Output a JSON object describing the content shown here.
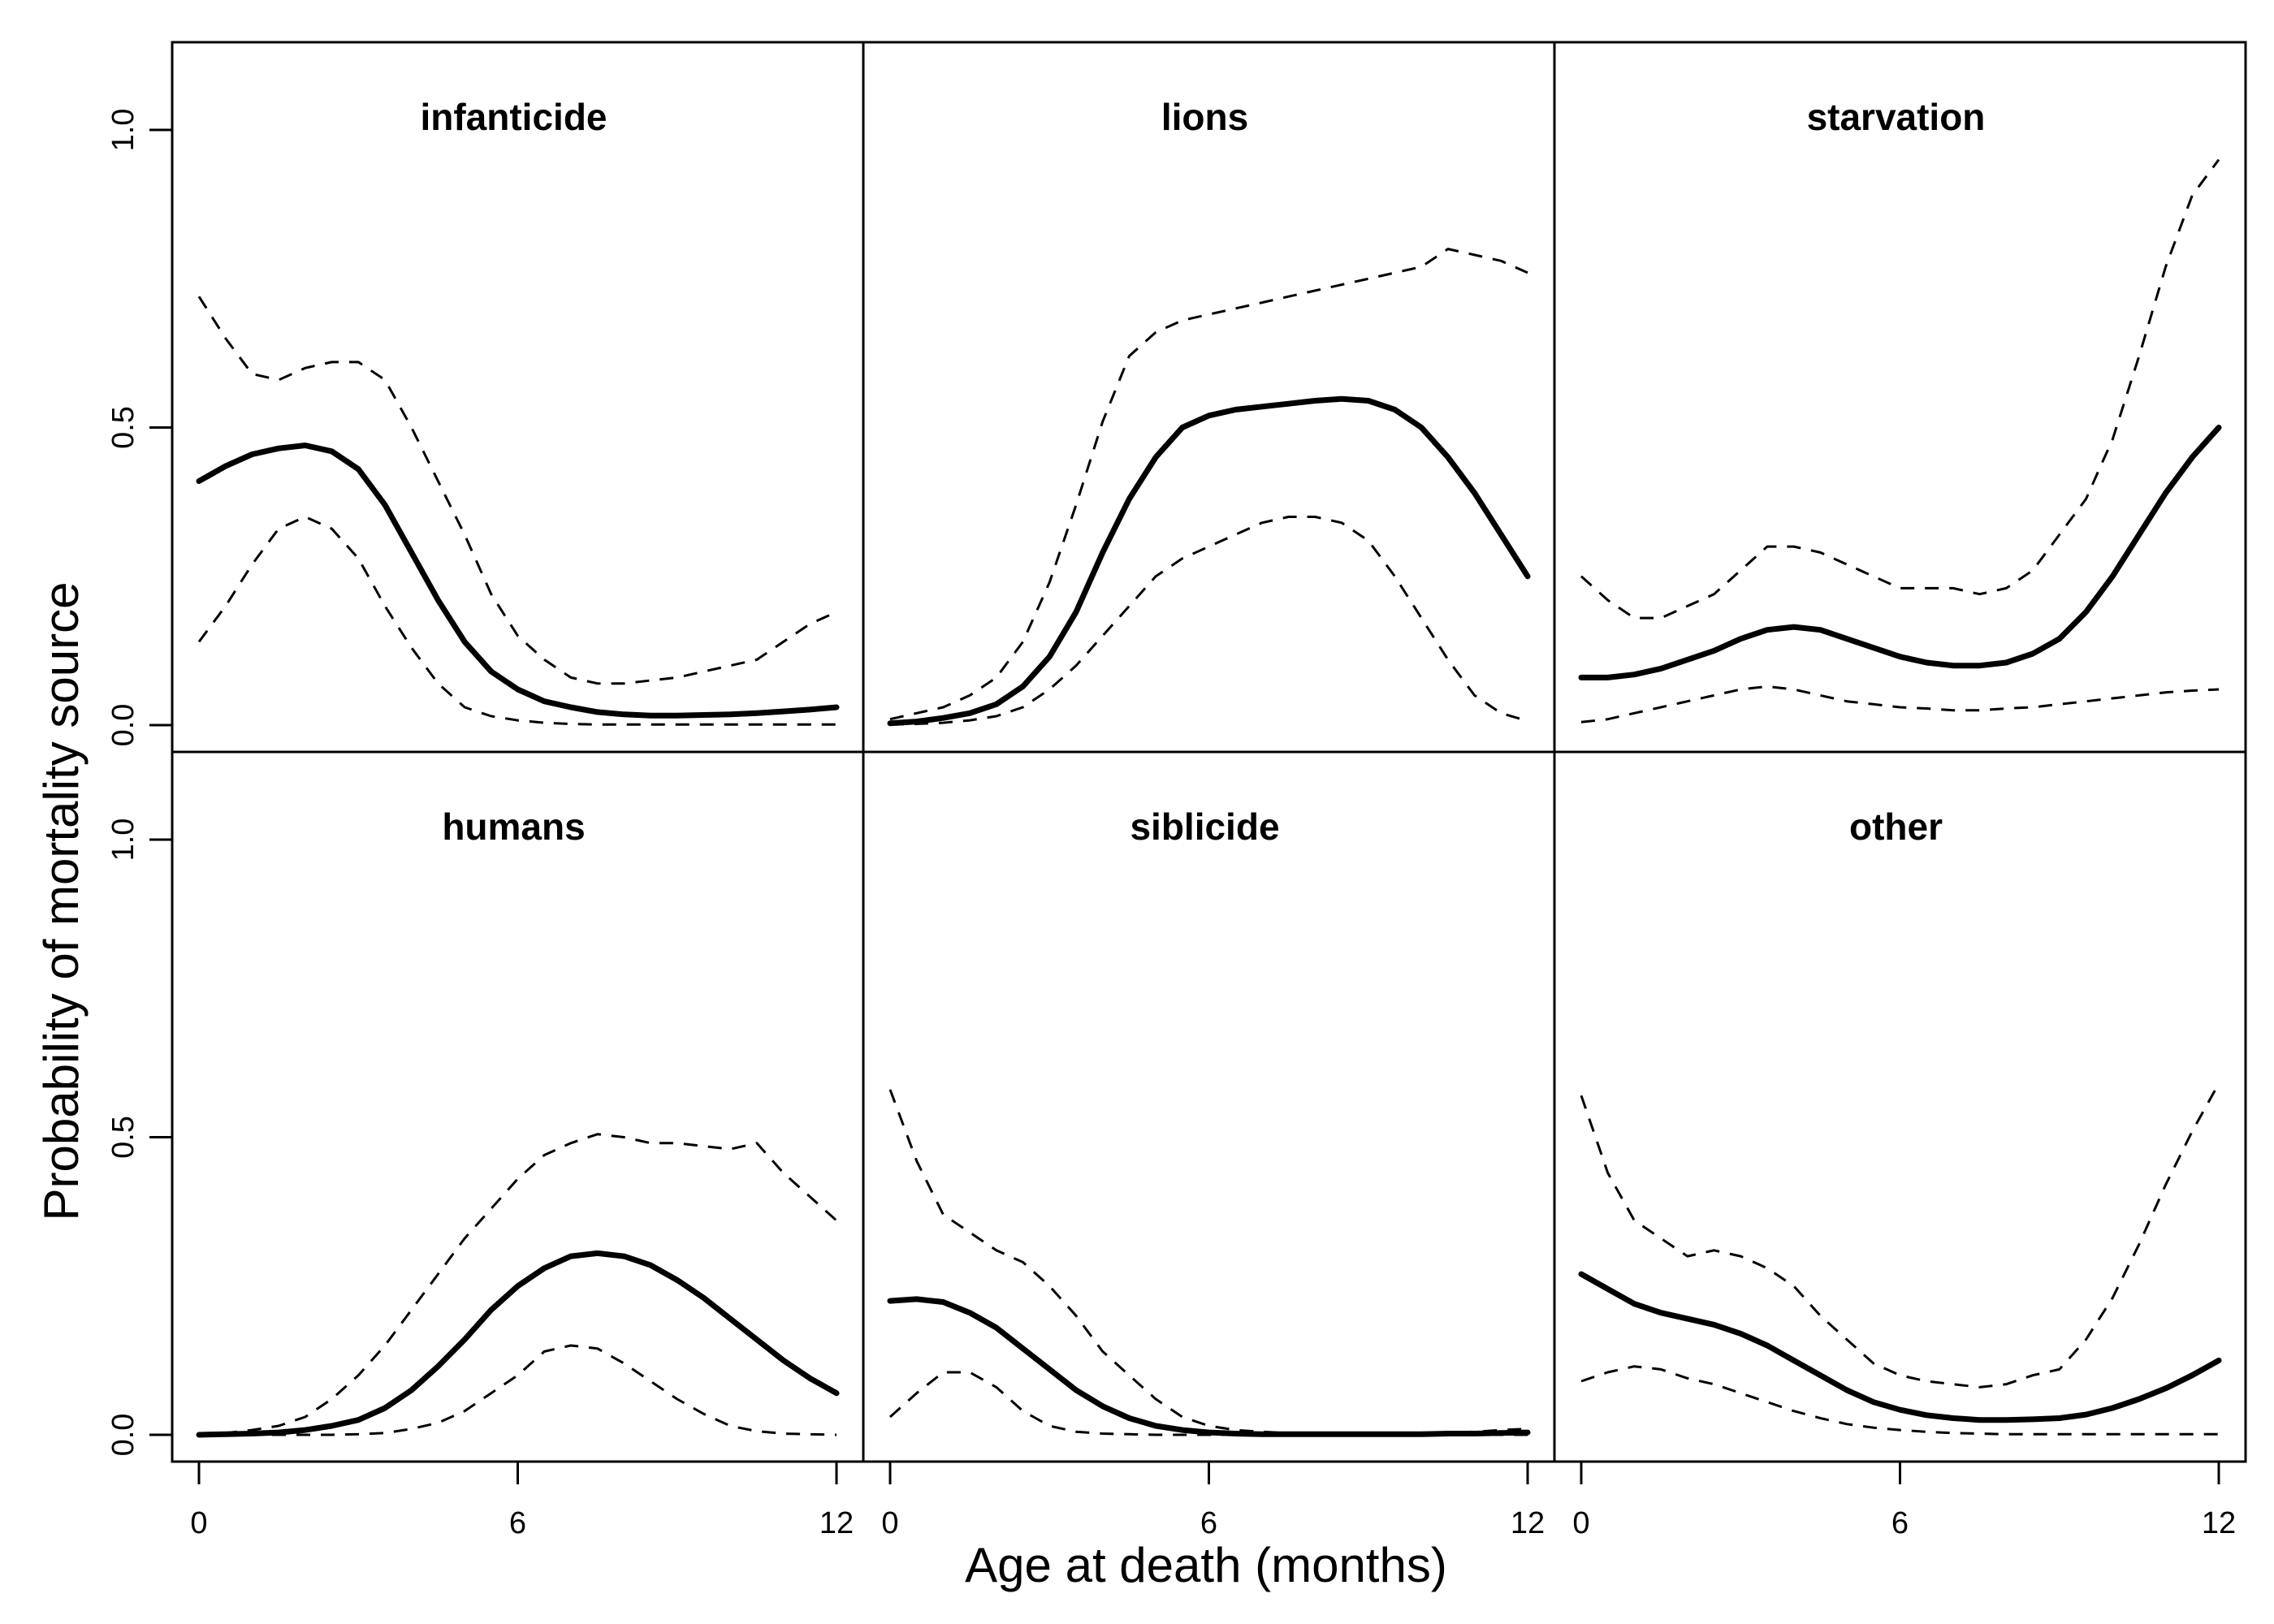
{
  "chart_data": {
    "type": "line",
    "xlabel": "Age at death (months)",
    "ylabel": "Probability of mortality source",
    "xlim": [
      0,
      12
    ],
    "ylim": [
      0,
      1
    ],
    "x_ticks": [
      0,
      6,
      12
    ],
    "y_ticks": [
      0.0,
      0.5,
      1.0
    ],
    "y_tick_labels": [
      "0.0",
      "0.5",
      "1.0"
    ],
    "grid": false,
    "legend": "none",
    "layout": "2 rows x 3 columns",
    "x": [
      0,
      0.5,
      1,
      1.5,
      2,
      2.5,
      3,
      3.5,
      4,
      4.5,
      5,
      5.5,
      6,
      6.5,
      7,
      7.5,
      8,
      8.5,
      9,
      9.5,
      10,
      10.5,
      11,
      11.5,
      12
    ],
    "panels": [
      {
        "title": "infanticide",
        "series": [
          {
            "style": "dashed",
            "values": [
              0.72,
              0.65,
              0.59,
              0.58,
              0.6,
              0.61,
              0.61,
              0.58,
              0.5,
              0.41,
              0.32,
              0.22,
              0.15,
              0.11,
              0.08,
              0.07,
              0.07,
              0.075,
              0.08,
              0.09,
              0.1,
              0.11,
              0.14,
              0.17,
              0.19
            ]
          },
          {
            "style": "solid",
            "values": [
              0.41,
              0.435,
              0.455,
              0.465,
              0.47,
              0.46,
              0.43,
              0.37,
              0.29,
              0.21,
              0.14,
              0.09,
              0.06,
              0.04,
              0.03,
              0.022,
              0.018,
              0.016,
              0.016,
              0.017,
              0.018,
              0.02,
              0.023,
              0.026,
              0.03
            ]
          },
          {
            "style": "dashed",
            "values": [
              0.14,
              0.2,
              0.27,
              0.33,
              0.35,
              0.33,
              0.28,
              0.2,
              0.13,
              0.07,
              0.03,
              0.015,
              0.008,
              0.004,
              0.002,
              0.001,
              0.001,
              0.001,
              0.001,
              0.001,
              0.001,
              0.001,
              0.001,
              0.001,
              0.001
            ]
          }
        ]
      },
      {
        "title": "lions",
        "series": [
          {
            "style": "dashed",
            "values": [
              0.01,
              0.02,
              0.03,
              0.05,
              0.08,
              0.14,
              0.24,
              0.37,
              0.51,
              0.62,
              0.66,
              0.68,
              0.69,
              0.7,
              0.71,
              0.72,
              0.73,
              0.74,
              0.75,
              0.76,
              0.77,
              0.8,
              0.79,
              0.78,
              0.76
            ]
          },
          {
            "style": "solid",
            "values": [
              0.003,
              0.006,
              0.012,
              0.02,
              0.035,
              0.065,
              0.115,
              0.19,
              0.29,
              0.38,
              0.45,
              0.5,
              0.52,
              0.53,
              0.535,
              0.54,
              0.545,
              0.548,
              0.545,
              0.53,
              0.5,
              0.45,
              0.39,
              0.32,
              0.25
            ]
          },
          {
            "style": "dashed",
            "values": [
              0.001,
              0.002,
              0.004,
              0.008,
              0.015,
              0.03,
              0.06,
              0.1,
              0.15,
              0.2,
              0.25,
              0.28,
              0.3,
              0.32,
              0.34,
              0.35,
              0.35,
              0.34,
              0.31,
              0.25,
              0.18,
              0.11,
              0.05,
              0.02,
              0.007
            ]
          }
        ]
      },
      {
        "title": "starvation",
        "series": [
          {
            "style": "dashed",
            "values": [
              0.25,
              0.21,
              0.18,
              0.18,
              0.2,
              0.22,
              0.26,
              0.3,
              0.3,
              0.29,
              0.27,
              0.25,
              0.23,
              0.23,
              0.23,
              0.22,
              0.23,
              0.26,
              0.32,
              0.38,
              0.48,
              0.62,
              0.77,
              0.89,
              0.95
            ]
          },
          {
            "style": "solid",
            "values": [
              0.08,
              0.08,
              0.085,
              0.095,
              0.11,
              0.125,
              0.145,
              0.16,
              0.165,
              0.16,
              0.145,
              0.13,
              0.115,
              0.105,
              0.1,
              0.1,
              0.105,
              0.12,
              0.145,
              0.19,
              0.25,
              0.32,
              0.39,
              0.45,
              0.5
            ]
          },
          {
            "style": "dashed",
            "values": [
              0.005,
              0.01,
              0.02,
              0.03,
              0.04,
              0.05,
              0.06,
              0.065,
              0.06,
              0.05,
              0.04,
              0.035,
              0.03,
              0.028,
              0.025,
              0.025,
              0.028,
              0.03,
              0.035,
              0.04,
              0.045,
              0.05,
              0.055,
              0.058,
              0.06
            ]
          }
        ]
      },
      {
        "title": "humans",
        "series": [
          {
            "style": "dashed",
            "values": [
              0.001,
              0.003,
              0.008,
              0.015,
              0.03,
              0.06,
              0.1,
              0.15,
              0.21,
              0.27,
              0.33,
              0.38,
              0.43,
              0.47,
              0.49,
              0.505,
              0.5,
              0.49,
              0.49,
              0.485,
              0.48,
              0.49,
              0.44,
              0.4,
              0.36
            ]
          },
          {
            "style": "solid",
            "values": [
              0.0,
              0.001,
              0.002,
              0.004,
              0.008,
              0.015,
              0.025,
              0.045,
              0.075,
              0.115,
              0.16,
              0.21,
              0.25,
              0.28,
              0.3,
              0.305,
              0.3,
              0.285,
              0.26,
              0.23,
              0.195,
              0.16,
              0.125,
              0.095,
              0.07
            ]
          },
          {
            "style": "dashed",
            "values": [
              0.0,
              0.0,
              0.0,
              0.0,
              0.0,
              0.0,
              0.001,
              0.003,
              0.01,
              0.02,
              0.04,
              0.07,
              0.1,
              0.14,
              0.15,
              0.145,
              0.12,
              0.09,
              0.06,
              0.035,
              0.015,
              0.006,
              0.002,
              0.001,
              0.0
            ]
          }
        ]
      },
      {
        "title": "siblicide",
        "series": [
          {
            "style": "dashed",
            "values": [
              0.58,
              0.46,
              0.37,
              0.34,
              0.31,
              0.29,
              0.25,
              0.2,
              0.14,
              0.1,
              0.06,
              0.03,
              0.015,
              0.008,
              0.005,
              0.003,
              0.002,
              0.002,
              0.002,
              0.002,
              0.003,
              0.004,
              0.005,
              0.008,
              0.01
            ]
          },
          {
            "style": "solid",
            "values": [
              0.225,
              0.228,
              0.223,
              0.205,
              0.18,
              0.145,
              0.11,
              0.075,
              0.048,
              0.028,
              0.015,
              0.008,
              0.004,
              0.002,
              0.001,
              0.001,
              0.001,
              0.001,
              0.001,
              0.001,
              0.001,
              0.002,
              0.002,
              0.003,
              0.004
            ]
          },
          {
            "style": "dashed",
            "values": [
              0.03,
              0.07,
              0.105,
              0.105,
              0.08,
              0.04,
              0.015,
              0.005,
              0.002,
              0.001,
              0.0,
              0.0,
              0.0,
              0.0,
              0.0,
              0.0,
              0.0,
              0.0,
              0.0,
              0.0,
              0.0,
              0.0,
              0.0,
              0.0,
              0.0
            ]
          }
        ]
      },
      {
        "title": "other",
        "series": [
          {
            "style": "dashed",
            "values": [
              0.57,
              0.44,
              0.36,
              0.33,
              0.3,
              0.31,
              0.3,
              0.28,
              0.25,
              0.2,
              0.16,
              0.12,
              0.1,
              0.09,
              0.085,
              0.08,
              0.085,
              0.1,
              0.11,
              0.16,
              0.23,
              0.32,
              0.42,
              0.51,
              0.59
            ]
          },
          {
            "style": "solid",
            "values": [
              0.27,
              0.245,
              0.22,
              0.205,
              0.195,
              0.185,
              0.17,
              0.15,
              0.125,
              0.1,
              0.075,
              0.055,
              0.042,
              0.033,
              0.028,
              0.025,
              0.025,
              0.026,
              0.028,
              0.034,
              0.045,
              0.06,
              0.078,
              0.1,
              0.125
            ]
          },
          {
            "style": "dashed",
            "values": [
              0.09,
              0.105,
              0.115,
              0.11,
              0.095,
              0.085,
              0.07,
              0.055,
              0.04,
              0.028,
              0.018,
              0.012,
              0.008,
              0.005,
              0.003,
              0.002,
              0.001,
              0.001,
              0.001,
              0.001,
              0.001,
              0.001,
              0.001,
              0.001,
              0.001
            ]
          }
        ]
      }
    ]
  }
}
